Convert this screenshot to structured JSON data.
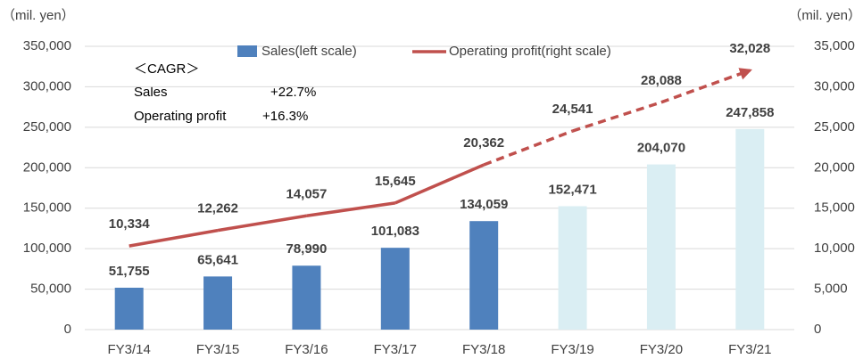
{
  "chart_data": {
    "type": "bar_line",
    "y_unit_label": "（mil. yen）",
    "y2_unit_label": "（mil. yen）",
    "categories": [
      "FY3/14",
      "FY3/15",
      "FY3/16",
      "FY3/17",
      "FY3/18",
      "FY3/19",
      "FY3/20",
      "FY3/21"
    ],
    "series": [
      {
        "name": "Sales(left scale)",
        "type": "bar",
        "axis": "y",
        "color": "#4f81bd",
        "colors": [
          "#4f81bd",
          "#4f81bd",
          "#4f81bd",
          "#4f81bd",
          "#4f81bd",
          "#daeef3",
          "#daeef3",
          "#daeef3"
        ],
        "values": [
          51755,
          65641,
          78990,
          101083,
          134059,
          152471,
          204070,
          247858
        ],
        "value_labels": [
          "51,755",
          "65,641",
          "78,990",
          "101,083",
          "134,059",
          "152,471",
          "204,070",
          "247,858"
        ]
      },
      {
        "name": "Operating profit(right scale)",
        "type": "line",
        "axis": "y2",
        "color": "#c0504d",
        "segment_styles": [
          "solid",
          "solid",
          "solid",
          "solid",
          "dashed",
          "dashed",
          "dashed"
        ],
        "values": [
          10334,
          12262,
          14057,
          15645,
          20362,
          24541,
          28088,
          32028
        ],
        "value_labels": [
          "10,334",
          "12,262",
          "14,057",
          "15,645",
          "20,362",
          "24,541",
          "28,088",
          "32,028"
        ]
      }
    ],
    "ylim": [
      0,
      350000
    ],
    "yticks": [
      0,
      {
        "value": 50000,
        "label": "50,000"
      },
      {
        "value": 100000,
        "label": "100,000"
      },
      {
        "value": 150000,
        "label": "150,000"
      },
      {
        "value": 200000,
        "label": "200,000"
      },
      {
        "value": 250000,
        "label": "250,000"
      },
      {
        "value": 300000,
        "label": "300,000"
      },
      {
        "value": 350000,
        "label": "350,000"
      }
    ],
    "y2lim": [
      0,
      35000
    ],
    "y2ticks": [
      0,
      {
        "value": 5000,
        "label": "5,000"
      },
      {
        "value": 10000,
        "label": "10,000"
      },
      {
        "value": 15000,
        "label": "15,000"
      },
      {
        "value": 20000,
        "label": "20,000"
      },
      {
        "value": 25000,
        "label": "25,000"
      },
      {
        "value": 30000,
        "label": "30,000"
      },
      {
        "value": 35000,
        "label": "35,000"
      }
    ],
    "grid": true,
    "legend": "top",
    "annotations": {
      "title": "＜CAGR＞",
      "rows": [
        [
          "Sales",
          "+22.7%"
        ],
        [
          "Operating profit",
          "+16.3%"
        ]
      ]
    }
  }
}
